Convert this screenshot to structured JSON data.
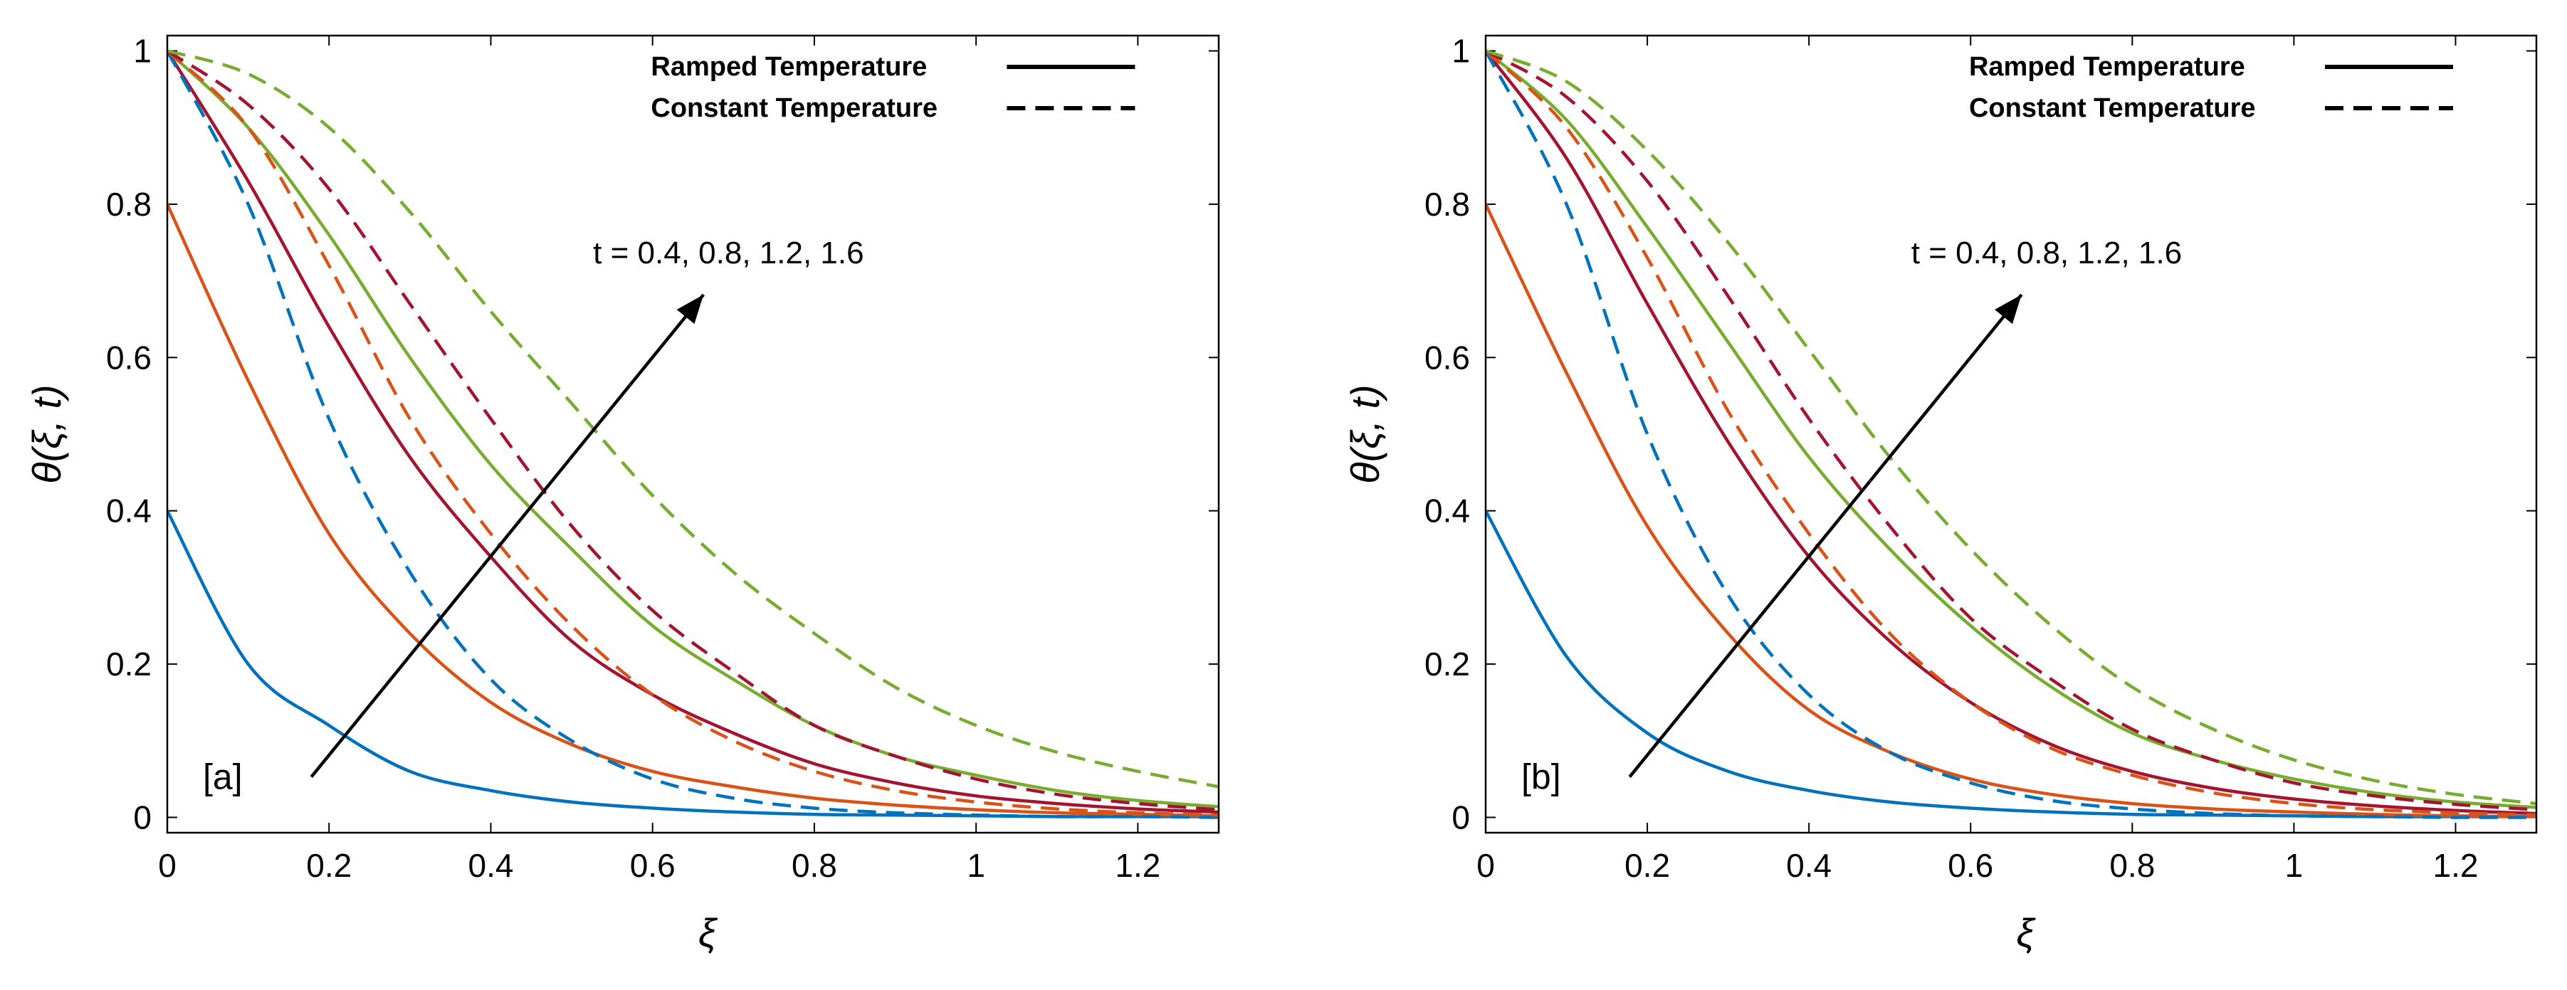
{
  "figure": {
    "line_colors": [
      "#0072BD",
      "#D95319",
      "#A2142F",
      "#77AC30"
    ],
    "text_color": "#000000"
  },
  "chart_data": [
    {
      "type": "line",
      "panel_label": "[a]",
      "xlabel": "ξ",
      "ylabel": "θ(ξ, t)",
      "xlim": [
        0,
        1.3
      ],
      "ylim": [
        -0.02,
        1.02
      ],
      "xticks": [
        "0",
        "0.2",
        "0.4",
        "0.6",
        "0.8",
        "1",
        "1.2"
      ],
      "yticks": [
        "0",
        "0.2",
        "0.4",
        "0.6",
        "0.8",
        "1"
      ],
      "legend": [
        {
          "label": "Ramped Temperature",
          "style": "solid"
        },
        {
          "label": "Constant Temperature",
          "style": "dashed"
        }
      ],
      "annotation": "t = 0.4, 0.8, 1.2, 1.6",
      "x": [
        0,
        0.1,
        0.2,
        0.3,
        0.4,
        0.5,
        0.6,
        0.7,
        0.8,
        0.9,
        1.0,
        1.1,
        1.2,
        1.3
      ],
      "series": [
        {
          "name": "Ramped t=0.4",
          "t": 0.4,
          "style": "solid",
          "color": "#0072BD",
          "values": [
            0.4,
            0.2,
            0.12,
            0.06,
            0.035,
            0.02,
            0.012,
            0.007,
            0.004,
            0.003,
            0.002,
            0.001,
            0.001,
            0.001
          ]
        },
        {
          "name": "Ramped t=0.8",
          "t": 0.8,
          "style": "solid",
          "color": "#D95319",
          "values": [
            0.8,
            0.57,
            0.37,
            0.24,
            0.15,
            0.095,
            0.06,
            0.04,
            0.025,
            0.016,
            0.01,
            0.006,
            0.004,
            0.002
          ]
        },
        {
          "name": "Ramped t=1.2",
          "t": 1.2,
          "style": "solid",
          "color": "#A2142F",
          "values": [
            1.0,
            0.83,
            0.64,
            0.47,
            0.34,
            0.23,
            0.16,
            0.11,
            0.07,
            0.045,
            0.028,
            0.018,
            0.011,
            0.007
          ]
        },
        {
          "name": "Ramped t=1.6",
          "t": 1.6,
          "style": "solid",
          "color": "#77AC30",
          "values": [
            1.0,
            0.9,
            0.76,
            0.6,
            0.46,
            0.35,
            0.25,
            0.18,
            0.12,
            0.08,
            0.055,
            0.035,
            0.022,
            0.014
          ]
        },
        {
          "name": "Constant t=0.4",
          "t": 0.4,
          "style": "dashed",
          "color": "#0072BD",
          "values": [
            1.0,
            0.8,
            0.52,
            0.32,
            0.18,
            0.1,
            0.05,
            0.025,
            0.012,
            0.006,
            0.003,
            0.001,
            0.001,
            0.0
          ]
        },
        {
          "name": "Constant t=0.8",
          "t": 0.8,
          "style": "dashed",
          "color": "#D95319",
          "values": [
            1.0,
            0.9,
            0.72,
            0.52,
            0.37,
            0.25,
            0.16,
            0.1,
            0.06,
            0.035,
            0.02,
            0.011,
            0.006,
            0.003
          ]
        },
        {
          "name": "Constant t=1.2",
          "t": 1.2,
          "style": "dashed",
          "color": "#A2142F",
          "values": [
            1.0,
            0.93,
            0.82,
            0.67,
            0.52,
            0.38,
            0.27,
            0.19,
            0.12,
            0.08,
            0.05,
            0.03,
            0.018,
            0.01
          ]
        },
        {
          "name": "Constant t=1.6",
          "t": 1.6,
          "style": "dashed",
          "color": "#77AC30",
          "values": [
            1.0,
            0.97,
            0.9,
            0.79,
            0.66,
            0.54,
            0.42,
            0.32,
            0.24,
            0.17,
            0.12,
            0.085,
            0.06,
            0.04
          ]
        }
      ]
    },
    {
      "type": "line",
      "panel_label": "[b]",
      "xlabel": "ξ",
      "ylabel": "θ(ξ, t)",
      "xlim": [
        0,
        1.3
      ],
      "ylim": [
        -0.02,
        1.02
      ],
      "xticks": [
        "0",
        "0.2",
        "0.4",
        "0.6",
        "0.8",
        "1",
        "1.2"
      ],
      "yticks": [
        "0",
        "0.2",
        "0.4",
        "0.6",
        "0.8",
        "1"
      ],
      "legend": [
        {
          "label": "Ramped Temperature",
          "style": "solid"
        },
        {
          "label": "Constant Temperature",
          "style": "dashed"
        }
      ],
      "annotation": "t = 0.4, 0.8, 1.2, 1.6",
      "x": [
        0,
        0.1,
        0.2,
        0.3,
        0.4,
        0.5,
        0.6,
        0.7,
        0.8,
        0.9,
        1.0,
        1.1,
        1.2,
        1.3
      ],
      "series": [
        {
          "name": "Ramped t=0.4",
          "t": 0.4,
          "style": "solid",
          "color": "#0072BD",
          "values": [
            0.4,
            0.21,
            0.11,
            0.06,
            0.035,
            0.02,
            0.012,
            0.007,
            0.004,
            0.003,
            0.002,
            0.001,
            0.001,
            0.001
          ]
        },
        {
          "name": "Ramped t=0.8",
          "t": 0.8,
          "style": "solid",
          "color": "#D95319",
          "values": [
            0.8,
            0.58,
            0.38,
            0.24,
            0.14,
            0.085,
            0.05,
            0.03,
            0.018,
            0.011,
            0.007,
            0.004,
            0.002,
            0.001
          ]
        },
        {
          "name": "Ramped t=1.2",
          "t": 1.2,
          "style": "solid",
          "color": "#A2142F",
          "values": [
            1.0,
            0.86,
            0.67,
            0.49,
            0.34,
            0.23,
            0.15,
            0.095,
            0.06,
            0.038,
            0.024,
            0.015,
            0.009,
            0.005
          ]
        },
        {
          "name": "Ramped t=1.6",
          "t": 1.6,
          "style": "solid",
          "color": "#77AC30",
          "values": [
            1.0,
            0.91,
            0.77,
            0.62,
            0.47,
            0.35,
            0.25,
            0.17,
            0.11,
            0.075,
            0.05,
            0.032,
            0.02,
            0.013
          ]
        },
        {
          "name": "Constant t=0.4",
          "t": 0.4,
          "style": "dashed",
          "color": "#0072BD",
          "values": [
            1.0,
            0.8,
            0.5,
            0.29,
            0.16,
            0.085,
            0.045,
            0.022,
            0.011,
            0.005,
            0.002,
            0.001,
            0.0,
            0.0
          ]
        },
        {
          "name": "Constant t=0.8",
          "t": 0.8,
          "style": "dashed",
          "color": "#D95319",
          "values": [
            1.0,
            0.9,
            0.73,
            0.53,
            0.37,
            0.24,
            0.15,
            0.09,
            0.055,
            0.032,
            0.018,
            0.01,
            0.006,
            0.003
          ]
        },
        {
          "name": "Constant t=1.2",
          "t": 1.2,
          "style": "dashed",
          "color": "#A2142F",
          "values": [
            1.0,
            0.94,
            0.83,
            0.68,
            0.52,
            0.38,
            0.26,
            0.18,
            0.115,
            0.075,
            0.045,
            0.028,
            0.017,
            0.01
          ]
        },
        {
          "name": "Constant t=1.6",
          "t": 1.6,
          "style": "dashed",
          "color": "#77AC30",
          "values": [
            1.0,
            0.96,
            0.87,
            0.75,
            0.61,
            0.47,
            0.35,
            0.25,
            0.17,
            0.115,
            0.075,
            0.048,
            0.03,
            0.018
          ]
        }
      ]
    }
  ]
}
